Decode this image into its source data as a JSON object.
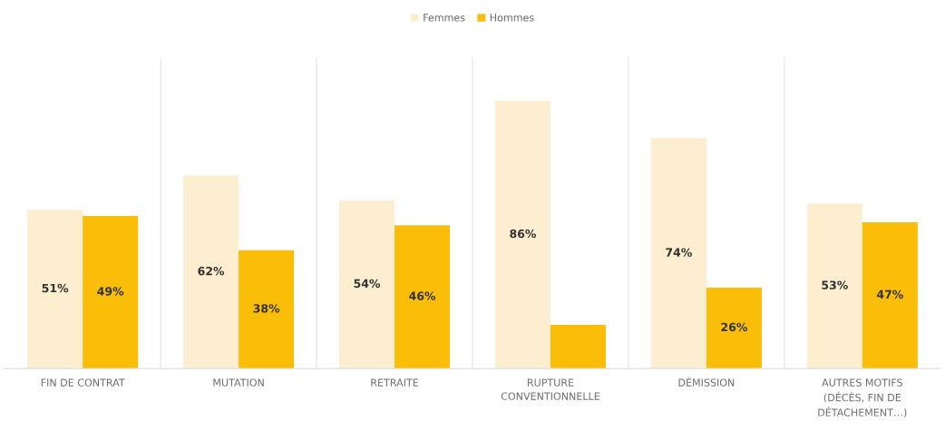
{
  "chart_data": {
    "type": "bar",
    "categories": [
      "FIN DE CONTRAT",
      "MUTATION",
      "RETRAITE",
      "RUPTURE\nCONVENTIONNELLE",
      "DÉMISSION",
      "AUTRES MOTIFS\n(DÉCÈS, FIN DE\nDÉTACHEMENT…)"
    ],
    "series": [
      {
        "name": "Femmes",
        "color": "#fdeecf",
        "values": [
          51,
          62,
          54,
          86,
          74,
          53
        ],
        "value_labels": [
          "51%",
          "62%",
          "54%",
          "86%",
          "74%",
          "53%"
        ]
      },
      {
        "name": "Hommes",
        "color": "#fabd08",
        "values": [
          49,
          38,
          46,
          14,
          26,
          47
        ],
        "value_labels": [
          "49%",
          "38%",
          "46%",
          null,
          "26%",
          "47%"
        ]
      }
    ],
    "ylim": [
      0,
      100
    ],
    "tick_labels": "x",
    "grid": "x",
    "legend": "top"
  }
}
